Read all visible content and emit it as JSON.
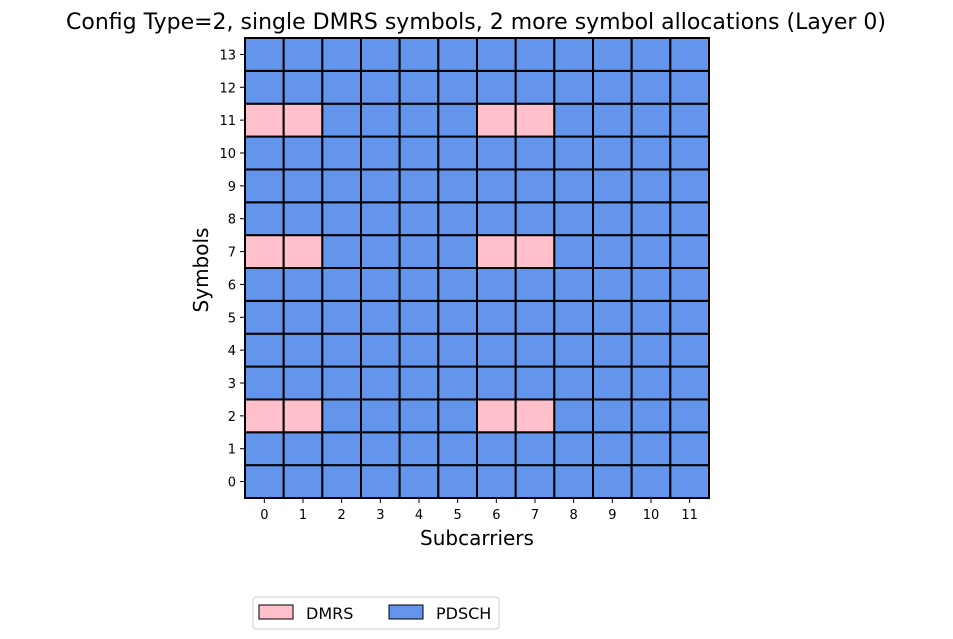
{
  "chart_data": {
    "type": "heatmap",
    "title": "Config Type=2, single DMRS symbols, 2 more symbol allocations (Layer 0)",
    "xlabel": "Subcarriers",
    "ylabel": "Symbols",
    "x_ticks": [
      "0",
      "1",
      "2",
      "3",
      "4",
      "5",
      "6",
      "7",
      "8",
      "9",
      "10",
      "11"
    ],
    "y_ticks": [
      "0",
      "1",
      "2",
      "3",
      "4",
      "5",
      "6",
      "7",
      "8",
      "9",
      "10",
      "11",
      "12",
      "13"
    ],
    "categories_legend": [
      {
        "name": "DMRS",
        "color": "#ffc0cb"
      },
      {
        "name": "PDSCH",
        "color": "#6495ed"
      }
    ],
    "dmrs_cells": [
      {
        "symbol": 2,
        "subcarrier": 0
      },
      {
        "symbol": 2,
        "subcarrier": 1
      },
      {
        "symbol": 2,
        "subcarrier": 6
      },
      {
        "symbol": 2,
        "subcarrier": 7
      },
      {
        "symbol": 7,
        "subcarrier": 0
      },
      {
        "symbol": 7,
        "subcarrier": 1
      },
      {
        "symbol": 7,
        "subcarrier": 6
      },
      {
        "symbol": 7,
        "subcarrier": 7
      },
      {
        "symbol": 11,
        "subcarrier": 0
      },
      {
        "symbol": 11,
        "subcarrier": 1
      },
      {
        "symbol": 11,
        "subcarrier": 6
      },
      {
        "symbol": 11,
        "subcarrier": 7
      }
    ],
    "default_fill": "PDSCH",
    "legend_placement": "bottom-center"
  }
}
